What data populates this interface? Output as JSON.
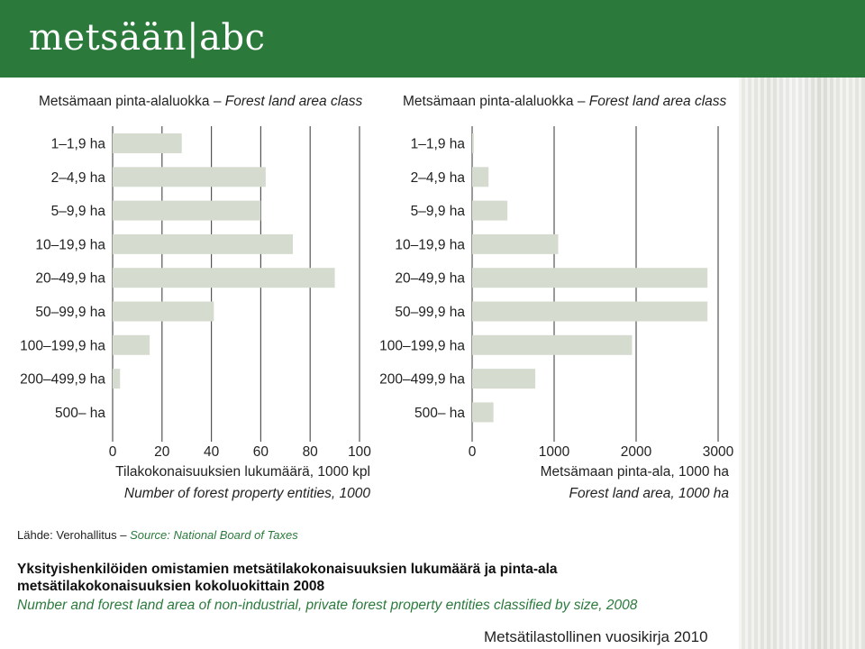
{
  "header": {
    "logo_text": "metsään|abc",
    "color": "#2b7a3c"
  },
  "chart_data": [
    {
      "type": "bar",
      "orientation": "horizontal",
      "title_fi": "Metsämaan pinta-alaluokka",
      "title_en": "Forest land area class",
      "categories": [
        "1–1,9 ha",
        "2–4,9 ha",
        "5–9,9 ha",
        "10–19,9 ha",
        "20–49,9 ha",
        "50–99,9 ha",
        "100–199,9 ha",
        "200–499,9 ha",
        "500– ha"
      ],
      "values": [
        28,
        62,
        60,
        73,
        90,
        41,
        15,
        3,
        0
      ],
      "xlim": [
        0,
        100
      ],
      "xticks": [
        "0",
        "20",
        "40",
        "60",
        "80",
        "100"
      ],
      "xlabel_fi": "Tilakokonaisuuksien lukumäärä, 1000 kpl",
      "xlabel_en": "Number of forest property entities, 1000",
      "bar_color": "#d5dccf",
      "grid": true
    },
    {
      "type": "bar",
      "orientation": "horizontal",
      "title_fi": "Metsämaan pinta-alaluokka",
      "title_en": "Forest land area class",
      "categories": [
        "1–1,9 ha",
        "2–4,9 ha",
        "5–9,9 ha",
        "10–19,9 ha",
        "20–49,9 ha",
        "50–99,9 ha",
        "100–199,9 ha",
        "200–499,9 ha",
        "500– ha"
      ],
      "values": [
        20,
        200,
        430,
        1050,
        2870,
        2870,
        1950,
        770,
        260
      ],
      "xlim": [
        0,
        3000
      ],
      "xticks": [
        "0",
        "1000",
        "2000",
        "3000"
      ],
      "xlabel_fi": "Metsämaan pinta-ala, 1000 ha",
      "xlabel_en": "Forest land area, 1000 ha",
      "bar_color": "#d5dccf",
      "grid": true
    }
  ],
  "source": {
    "fi": "Lähde: Verohallitus –",
    "en": "Source: National Board of Taxes"
  },
  "caption": {
    "fi": "Yksityishenkilöiden omistamien metsätilakokonaisuuksien lukumäärä ja pinta-ala metsätilakokonaisuuksien kokoluokittain 2008",
    "en": "Number and forest land area of non-industrial, private forest property entities classified by size, 2008"
  },
  "footer": "Metsätilastollinen vuosikirja 2010"
}
